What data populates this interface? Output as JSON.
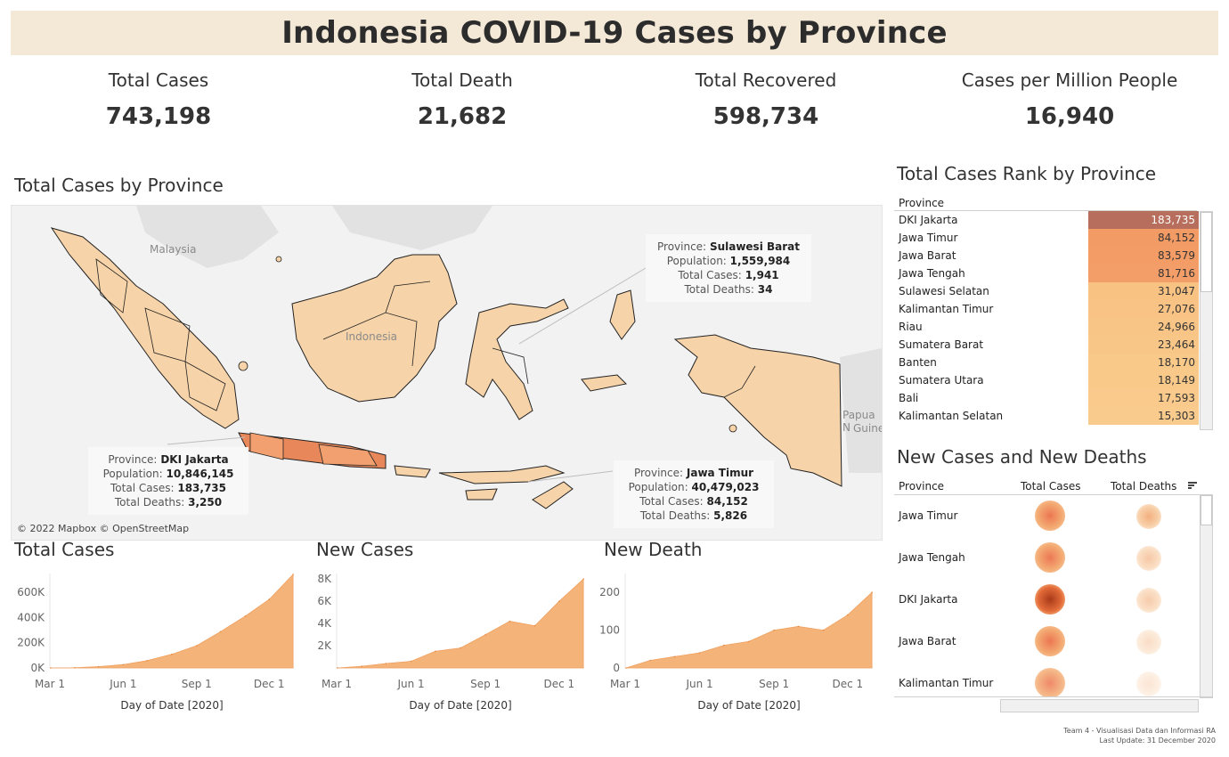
{
  "title": "Indonesia COVID-19 Cases by Province",
  "kpis": [
    {
      "label": "Total Cases",
      "value": "743,198"
    },
    {
      "label": "Total Death",
      "value": "21,682"
    },
    {
      "label": "Total Recovered",
      "value": "598,734"
    },
    {
      "label": "Cases per Million People",
      "value": "16,940"
    }
  ],
  "map": {
    "title": "Total Cases by Province",
    "labels": {
      "malaysia": "Malaysia",
      "indonesia": "Indonesia",
      "papua": "Papua N",
      "guinea": "Guine"
    },
    "credit": "© 2022 Mapbox © OpenStreetMap",
    "tooltips": [
      {
        "province_label": "Province:",
        "province": "Sulawesi Barat",
        "population_label": "Population:",
        "population": "1,559,984",
        "cases_label": "Total Cases:",
        "cases": "1,941",
        "deaths_label": "Total Deaths:",
        "deaths": "34"
      },
      {
        "province_label": "Province:",
        "province": "DKI Jakarta",
        "population_label": "Population:",
        "population": "10,846,145",
        "cases_label": "Total Cases:",
        "cases": "183,735",
        "deaths_label": "Total Deaths:",
        "deaths": "3,250"
      },
      {
        "province_label": "Province:",
        "province": "Jawa Timur",
        "population_label": "Population:",
        "population": "40,479,023",
        "cases_label": "Total Cases:",
        "cases": "84,152",
        "deaths_label": "Total Deaths:",
        "deaths": "5,826"
      }
    ],
    "colors": {
      "base": "#f6d3a8",
      "mid": "#f2a070",
      "high": "#e8885a",
      "border": "#222222"
    }
  },
  "rank": {
    "title": "Total Cases Rank by Province",
    "header": "Province",
    "rows": [
      {
        "province": "DKI Jakarta",
        "value": "183,735",
        "color": "#b86e5d"
      },
      {
        "province": "Jawa Timur",
        "value": "84,152",
        "color": "#f39b65"
      },
      {
        "province": "Jawa Barat",
        "value": "83,579",
        "color": "#f39c66"
      },
      {
        "province": "Jawa Tengah",
        "value": "81,716",
        "color": "#f39e68"
      },
      {
        "province": "Sulawesi Selatan",
        "value": "31,047",
        "color": "#f8c282"
      },
      {
        "province": "Kalimantan Timur",
        "value": "27,076",
        "color": "#f8c384"
      },
      {
        "province": "Riau",
        "value": "24,966",
        "color": "#f8c586"
      },
      {
        "province": "Sumatera Barat",
        "value": "23,464",
        "color": "#f8c687"
      },
      {
        "province": "Banten",
        "value": "18,170",
        "color": "#f9c98a"
      },
      {
        "province": "Sumatera Utara",
        "value": "18,149",
        "color": "#f9c98a"
      },
      {
        "province": "Bali",
        "value": "17,593",
        "color": "#f9ca8b"
      },
      {
        "province": "Kalimantan Selatan",
        "value": "15,303",
        "color": "#f9cb8c"
      }
    ]
  },
  "bubbles": {
    "title": "New Cases and New Deaths",
    "headers": {
      "province": "Province",
      "cases": "Total Cases",
      "deaths": "Total Deaths"
    },
    "rows": [
      {
        "province": "Jawa Timur",
        "case_level": 0.46,
        "death_level": 1.0
      },
      {
        "province": "Jawa Tengah",
        "case_level": 0.44,
        "death_level": 0.6
      },
      {
        "province": "DKI Jakarta",
        "case_level": 1.0,
        "death_level": 0.55
      },
      {
        "province": "Jawa Barat",
        "case_level": 0.45,
        "death_level": 0.25
      },
      {
        "province": "Kalimantan Timur",
        "case_level": 0.15,
        "death_level": 0.1
      }
    ]
  },
  "chart_data": [
    {
      "type": "area",
      "title": "Total Cases",
      "xlabel": "Day of Date [2020]",
      "ylabel": "",
      "x_ticks": [
        "Mar 1",
        "Jun 1",
        "Sep 1",
        "Dec 1"
      ],
      "y_ticks": [
        "0K",
        "200K",
        "400K",
        "600K"
      ],
      "ylim": [
        0,
        750000
      ],
      "x": [
        "2020-03-02",
        "2020-04-01",
        "2020-05-01",
        "2020-06-01",
        "2020-07-01",
        "2020-08-01",
        "2020-09-01",
        "2020-10-01",
        "2020-11-01",
        "2020-12-01",
        "2020-12-31"
      ],
      "values": [
        2,
        1500,
        10500,
        26500,
        57800,
        108000,
        177000,
        288000,
        412000,
        544000,
        743198
      ],
      "color": "#f4b378"
    },
    {
      "type": "area",
      "title": "New Cases",
      "xlabel": "Day of Date [2020]",
      "ylabel": "",
      "x_ticks": [
        "Mar 1",
        "Jun 1",
        "Sep 1",
        "Dec 1"
      ],
      "y_ticks": [
        "2K",
        "4K",
        "6K",
        "8K"
      ],
      "ylim": [
        0,
        8500
      ],
      "x": [
        "2020-03-02",
        "2020-04-01",
        "2020-05-01",
        "2020-06-01",
        "2020-07-01",
        "2020-08-01",
        "2020-09-01",
        "2020-10-01",
        "2020-11-01",
        "2020-12-01",
        "2020-12-31"
      ],
      "values": [
        2,
        150,
        400,
        600,
        1500,
        1800,
        3000,
        4200,
        3800,
        6000,
        8000
      ],
      "color": "#f4b378"
    },
    {
      "type": "area",
      "title": "New Death",
      "xlabel": "Day of Date [2020]",
      "ylabel": "",
      "x_ticks": [
        "Mar 1",
        "Jun 1",
        "Sep 1",
        "Dec 1"
      ],
      "y_ticks": [
        "0",
        "100",
        "200"
      ],
      "ylim": [
        0,
        250
      ],
      "x": [
        "2020-03-02",
        "2020-04-01",
        "2020-05-01",
        "2020-06-01",
        "2020-07-01",
        "2020-08-01",
        "2020-09-01",
        "2020-10-01",
        "2020-11-01",
        "2020-12-01",
        "2020-12-31"
      ],
      "values": [
        0,
        20,
        30,
        40,
        60,
        70,
        100,
        110,
        100,
        140,
        200
      ],
      "color": "#f4b378"
    }
  ],
  "footer": {
    "line1": "Team 4 - Visualisasi Data dan Informasi RA",
    "line2": "Last Update: 31 December 2020"
  }
}
